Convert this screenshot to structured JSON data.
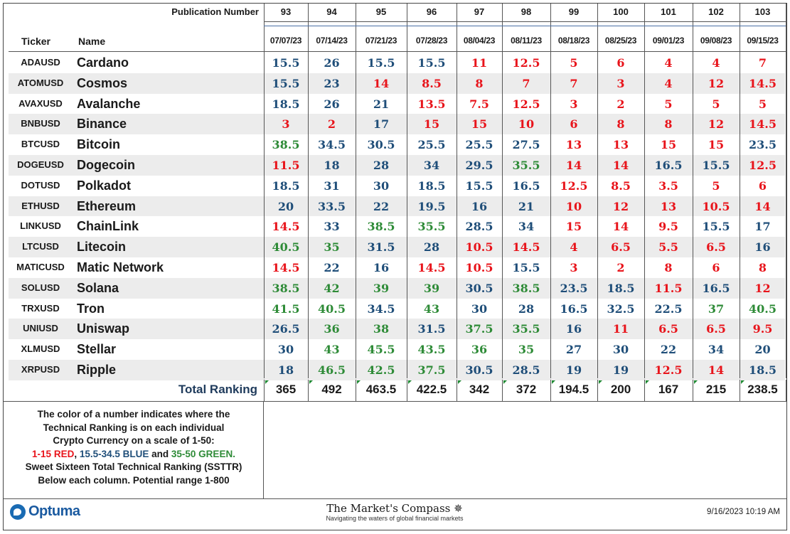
{
  "header": {
    "publication_label": "Publication Number",
    "ticker_label": "Ticker",
    "name_label": "Name",
    "publications": [
      "93",
      "94",
      "95",
      "96",
      "97",
      "98",
      "99",
      "100",
      "101",
      "102",
      "103"
    ],
    "dates": [
      "07/07/23",
      "07/14/23",
      "07/21/23",
      "07/28/23",
      "08/04/23",
      "08/11/23",
      "08/18/23",
      "08/25/23",
      "09/01/23",
      "09/08/23",
      "09/15/23"
    ]
  },
  "rows": [
    {
      "ticker": "ADAUSD",
      "name": "Cardano",
      "values": [
        "15.5",
        "26",
        "15.5",
        "15.5",
        "11",
        "12.5",
        "5",
        "6",
        "4",
        "4",
        "7"
      ]
    },
    {
      "ticker": "ATOMUSD",
      "name": "Cosmos",
      "values": [
        "15.5",
        "23",
        "14",
        "8.5",
        "8",
        "7",
        "7",
        "3",
        "4",
        "12",
        "14.5"
      ]
    },
    {
      "ticker": "AVAXUSD",
      "name": "Avalanche",
      "values": [
        "18.5",
        "26",
        "21",
        "13.5",
        "7.5",
        "12.5",
        "3",
        "2",
        "5",
        "5",
        "5"
      ]
    },
    {
      "ticker": "BNBUSD",
      "name": "Binance",
      "values": [
        "3",
        "2",
        "17",
        "15",
        "15",
        "10",
        "6",
        "8",
        "8",
        "12",
        "14.5"
      ]
    },
    {
      "ticker": "BTCUSD",
      "name": "Bitcoin",
      "values": [
        "38.5",
        "34.5",
        "30.5",
        "25.5",
        "25.5",
        "27.5",
        "13",
        "13",
        "15",
        "15",
        "23.5"
      ]
    },
    {
      "ticker": "DOGEUSD",
      "name": "Dogecoin",
      "values": [
        "11.5",
        "18",
        "28",
        "34",
        "29.5",
        "35.5",
        "14",
        "14",
        "16.5",
        "15.5",
        "12.5"
      ]
    },
    {
      "ticker": "DOTUSD",
      "name": "Polkadot",
      "values": [
        "18.5",
        "31",
        "30",
        "18.5",
        "15.5",
        "16.5",
        "12.5",
        "8.5",
        "3.5",
        "5",
        "6"
      ]
    },
    {
      "ticker": "ETHUSD",
      "name": "Ethereum",
      "values": [
        "20",
        "33.5",
        "22",
        "19.5",
        "16",
        "21",
        "10",
        "12",
        "13",
        "10.5",
        "14"
      ]
    },
    {
      "ticker": "LINKUSD",
      "name": "ChainLink",
      "values": [
        "14.5",
        "33",
        "38.5",
        "35.5",
        "28.5",
        "34",
        "15",
        "14",
        "9.5",
        "15.5",
        "17"
      ]
    },
    {
      "ticker": "LTCUSD",
      "name": "Litecoin",
      "values": [
        "40.5",
        "35",
        "31.5",
        "28",
        "10.5",
        "14.5",
        "4",
        "6.5",
        "5.5",
        "6.5",
        "16"
      ]
    },
    {
      "ticker": "MATICUSD",
      "name": "Matic Network",
      "values": [
        "14.5",
        "22",
        "16",
        "14.5",
        "10.5",
        "15.5",
        "3",
        "2",
        "8",
        "6",
        "8"
      ]
    },
    {
      "ticker": "SOLUSD",
      "name": "Solana",
      "values": [
        "38.5",
        "42",
        "39",
        "39",
        "30.5",
        "38.5",
        "23.5",
        "18.5",
        "11.5",
        "16.5",
        "12"
      ]
    },
    {
      "ticker": "TRXUSD",
      "name": "Tron",
      "values": [
        "41.5",
        "40.5",
        "34.5",
        "43",
        "30",
        "28",
        "16.5",
        "32.5",
        "22.5",
        "37",
        "40.5"
      ]
    },
    {
      "ticker": "UNIUSD",
      "name": "Uniswap",
      "values": [
        "26.5",
        "36",
        "38",
        "31.5",
        "37.5",
        "35.5",
        "16",
        "11",
        "6.5",
        "6.5",
        "9.5"
      ]
    },
    {
      "ticker": "XLMUSD",
      "name": "Stellar",
      "values": [
        "30",
        "43",
        "45.5",
        "43.5",
        "36",
        "35",
        "27",
        "30",
        "22",
        "34",
        "20"
      ]
    },
    {
      "ticker": "XRPUSD",
      "name": "Ripple",
      "values": [
        "18",
        "46.5",
        "42.5",
        "37.5",
        "30.5",
        "28.5",
        "19",
        "19",
        "12.5",
        "14",
        "18.5"
      ]
    }
  ],
  "totals": {
    "label": "Total Ranking",
    "values": [
      "365",
      "492",
      "463.5",
      "422.5",
      "342",
      "372",
      "194.5",
      "200",
      "167",
      "215",
      "238.5"
    ]
  },
  "legend": {
    "line1": "The color of a number indicates where the",
    "line2": "Technical Ranking is on each individual",
    "line3": "Crypto Currency on a scale of 1-50:",
    "red_text": "1-15 RED",
    "sep1": ", ",
    "blue_text": "15.5-34.5 BLUE",
    "sep2": " and ",
    "green_text": "35-50 GREEN.",
    "line5": "Sweet Sixteen Total Technical Ranking (SSTTR)",
    "line6": "Below each column.   Potential range 1-800"
  },
  "colors": {
    "red": "#e8141b",
    "blue": "#1f4e79",
    "green": "#2e8b37"
  },
  "footer": {
    "logo": "Optuma",
    "logo_icon": "optuma-logo-icon",
    "title": "The Market's Compass",
    "subtitle": "Navigating the waters of global financial markets",
    "timestamp": "9/16/2023 10:19 AM"
  }
}
